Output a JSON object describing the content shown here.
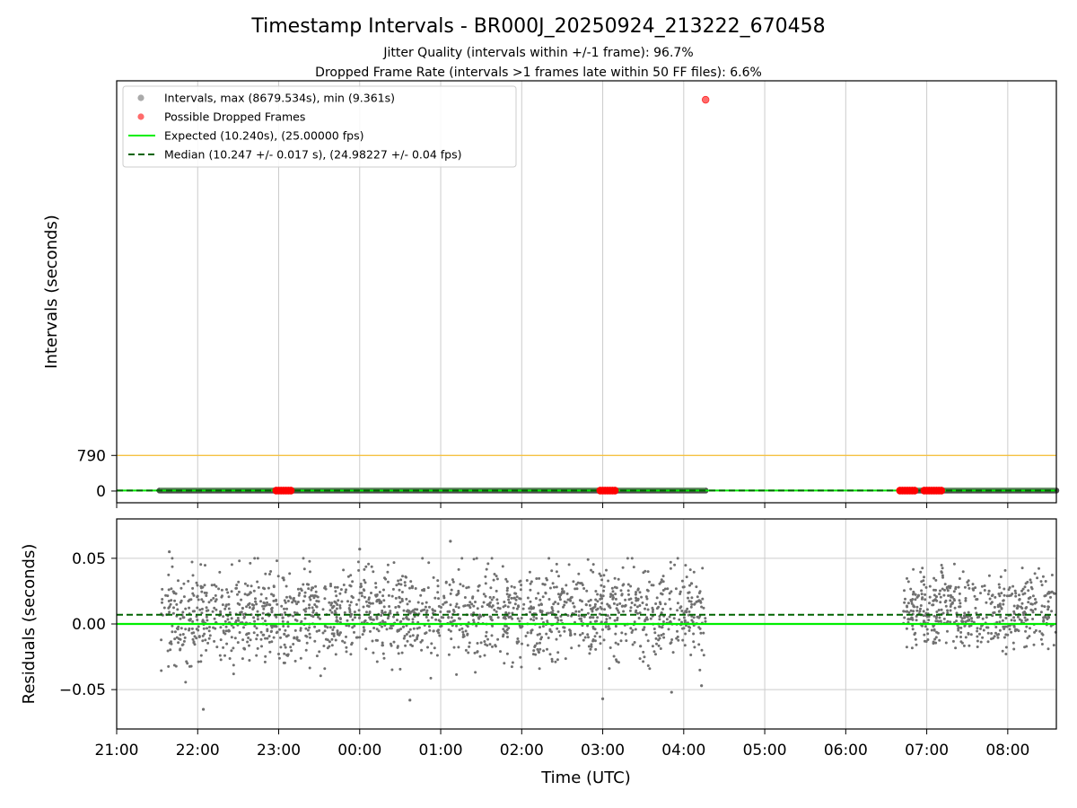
{
  "chart_data": {
    "type": "scatter",
    "title": "Timestamp Intervals - BR000J_20250924_213222_670458",
    "subtitle_lines": [
      "Jitter Quality (intervals within +/-1 frame): 96.7%",
      "Dropped Frame Rate (intervals >1 frames late within 50 FF files): 6.6%"
    ],
    "xlabel": "Time (UTC)",
    "x_unit": "hours since 21:00 UTC",
    "xlim": [
      0,
      11.6
    ],
    "x_ticks": [
      {
        "value": 0,
        "label": "21:00"
      },
      {
        "value": 1,
        "label": "22:00"
      },
      {
        "value": 2,
        "label": "23:00"
      },
      {
        "value": 3,
        "label": "00:00"
      },
      {
        "value": 4,
        "label": "01:00"
      },
      {
        "value": 5,
        "label": "02:00"
      },
      {
        "value": 6,
        "label": "03:00"
      },
      {
        "value": 7,
        "label": "04:00"
      },
      {
        "value": 8,
        "label": "05:00"
      },
      {
        "value": 9,
        "label": "06:00"
      },
      {
        "value": 10,
        "label": "07:00"
      },
      {
        "value": 11,
        "label": "08:00"
      }
    ],
    "top_panel": {
      "ylabel": "Intervals (seconds)",
      "ylim": [
        -260,
        9100
      ],
      "y_ticks": [
        {
          "value": 0,
          "label": "0"
        },
        {
          "value": 790,
          "label": "790"
        }
      ],
      "threshold_line_value": 790,
      "threshold_color": "#f5c242",
      "expected_value": 10.24,
      "median_value": 10.247,
      "interval_segments": [
        {
          "x_start": 0.53,
          "x_end": 7.27
        },
        {
          "x_start": 9.7,
          "x_end": 11.6
        }
      ],
      "outlier_point": {
        "x": 7.27,
        "y": 8679.534
      },
      "dropped_frame_clusters": [
        {
          "x_start": 1.97,
          "x_end": 2.15
        },
        {
          "x_start": 5.97,
          "x_end": 6.15
        },
        {
          "x_start": 9.67,
          "x_end": 9.85
        },
        {
          "x_start": 9.97,
          "x_end": 10.18
        }
      ],
      "series_colors": {
        "intervals": "#999999",
        "interval_band": "#4d4d4d",
        "dropped": "#ff0000",
        "expected": "#00ee00",
        "median": "#006400"
      },
      "legend": {
        "placement": "upper-left",
        "entries": [
          {
            "label": "Intervals, max (8679.534s), min (9.361s)",
            "marker": "dot",
            "color": "#aaaaaa"
          },
          {
            "label": "Possible Dropped Frames",
            "marker": "dot",
            "color": "#ff6b6b"
          },
          {
            "label": "Expected (10.240s), (25.00000 fps)",
            "marker": "line",
            "color": "#00ee00"
          },
          {
            "label": "Median (10.247 +/- 0.017 s), (24.98227 +/- 0.04 fps)",
            "marker": "dashed",
            "color": "#006400"
          }
        ]
      }
    },
    "bottom_panel": {
      "ylabel": "Residuals (seconds)",
      "ylim": [
        -0.08,
        0.08
      ],
      "y_ticks": [
        {
          "value": 0.05,
          "label": "0.05"
        },
        {
          "value": 0.0,
          "label": "0.00"
        },
        {
          "value": -0.05,
          "label": "−0.05"
        }
      ],
      "expected_residual": 0.0,
      "median_residual": 0.007,
      "residual_spread_sd": 0.017,
      "residual_segments": [
        {
          "x_start": 0.55,
          "x_end": 7.27
        },
        {
          "x_start": 9.7,
          "x_end": 11.6
        }
      ],
      "point_color": "#707070",
      "notable_points": [
        {
          "x": 0.65,
          "y": 0.055
        },
        {
          "x": 1.07,
          "y": -0.065
        },
        {
          "x": 3.0,
          "y": 0.057
        },
        {
          "x": 4.12,
          "y": 0.063
        },
        {
          "x": 3.62,
          "y": -0.058
        },
        {
          "x": 6.0,
          "y": -0.057
        },
        {
          "x": 6.85,
          "y": -0.052
        },
        {
          "x": 7.22,
          "y": -0.047
        }
      ]
    }
  }
}
